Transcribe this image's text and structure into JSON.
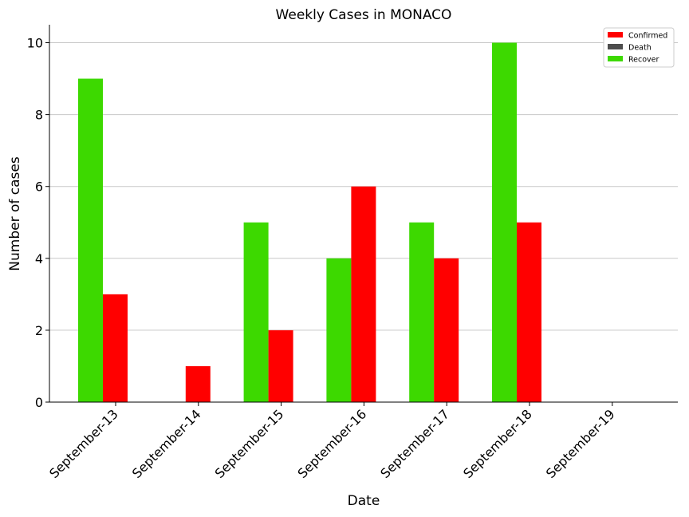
{
  "chart_data": {
    "type": "bar",
    "title": "Weekly Cases in MONACO",
    "xlabel": "Date",
    "ylabel": "Number of cases",
    "categories": [
      "September-13",
      "September-14",
      "September-15",
      "September-16",
      "September-17",
      "September-18",
      "September-19"
    ],
    "series": [
      {
        "name": "Confirmed",
        "color": "#ff0000",
        "values": [
          3,
          1,
          2,
          6,
          4,
          5,
          0
        ]
      },
      {
        "name": "Death",
        "color": "#4d4d4d",
        "values": [
          0,
          0,
          0,
          0,
          0,
          0,
          0
        ]
      },
      {
        "name": "Recover",
        "color": "#3dd900",
        "values": [
          9,
          0,
          5,
          4,
          5,
          10,
          0
        ]
      }
    ],
    "ylim": [
      0,
      10.5
    ],
    "yticks": [
      0,
      2,
      4,
      6,
      8,
      10
    ],
    "grid": "horizontal",
    "legend_position": "top-right"
  }
}
